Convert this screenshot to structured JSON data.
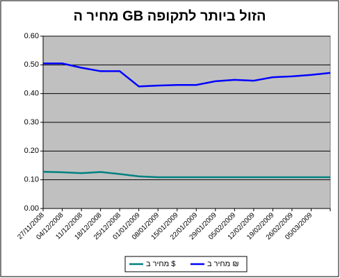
{
  "chart_data": {
    "type": "line",
    "title": "מחיר ה GB הזול ביותר לתקופה",
    "categories": [
      "27/11/2008",
      "04/12/2008",
      "11/12/2008",
      "18/12/2008",
      "25/12/2008",
      "01/01/2009",
      "08/01/2009",
      "15/01/2009",
      "22/01/2009",
      "29/01/2009",
      "05/02/2009",
      "12/02/2009",
      "19/02/2009",
      "26/02/2009",
      "05/03/2009",
      null
    ],
    "series": [
      {
        "name": "מחיר ב ₪",
        "color": "#0000ff",
        "values": [
          0.505,
          0.505,
          0.49,
          0.478,
          0.478,
          0.425,
          0.428,
          0.43,
          0.43,
          0.443,
          0.448,
          0.445,
          0.457,
          0.46,
          0.465,
          0.472
        ]
      },
      {
        "name": "מחיר ב $",
        "color": "#008080",
        "values": [
          0.128,
          0.126,
          0.123,
          0.127,
          0.12,
          0.112,
          0.109,
          0.109,
          0.109,
          0.109,
          0.109,
          0.109,
          0.109,
          0.109,
          0.109,
          0.109
        ]
      }
    ],
    "ylim": [
      0,
      0.6
    ],
    "yticks": [
      {
        "value": 0,
        "label": "0.00"
      },
      {
        "value": 0.1,
        "label": "0.10"
      },
      {
        "value": 0.2,
        "label": "0.20"
      },
      {
        "value": 0.3,
        "label": "0.30"
      },
      {
        "value": 0.4,
        "label": "0.40"
      },
      {
        "value": 0.5,
        "label": "0.50"
      },
      {
        "value": 0.6,
        "label": "0.60"
      }
    ],
    "grid": true
  }
}
